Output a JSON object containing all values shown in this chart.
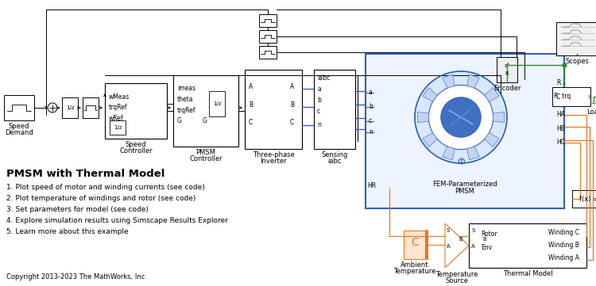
{
  "bg_color": "#ffffff",
  "orange_color": "#E87722",
  "green_color": "#2D8B2D",
  "blue_color": "#3060C0",
  "black": "#000000",
  "gray_fill": "#F0F0F0",
  "scope_fill": "#E8E8E8",
  "pmsm_fill": "#EEF4FF",
  "red_fill": "#FFE0D0",
  "title_text": "PMSM with Thermal Model",
  "bullets": [
    "1. Plot speed of motor and winding currents (see code)",
    "2. Plot temperature of windings and rotor (see code)",
    "3. Set parameters for model (see code)",
    "4. Explore simulation results using Simscape Results Explorer",
    "5. Learn more about this example"
  ],
  "copyright": "Copyright 2013-2023 The MathWorks, Inc."
}
